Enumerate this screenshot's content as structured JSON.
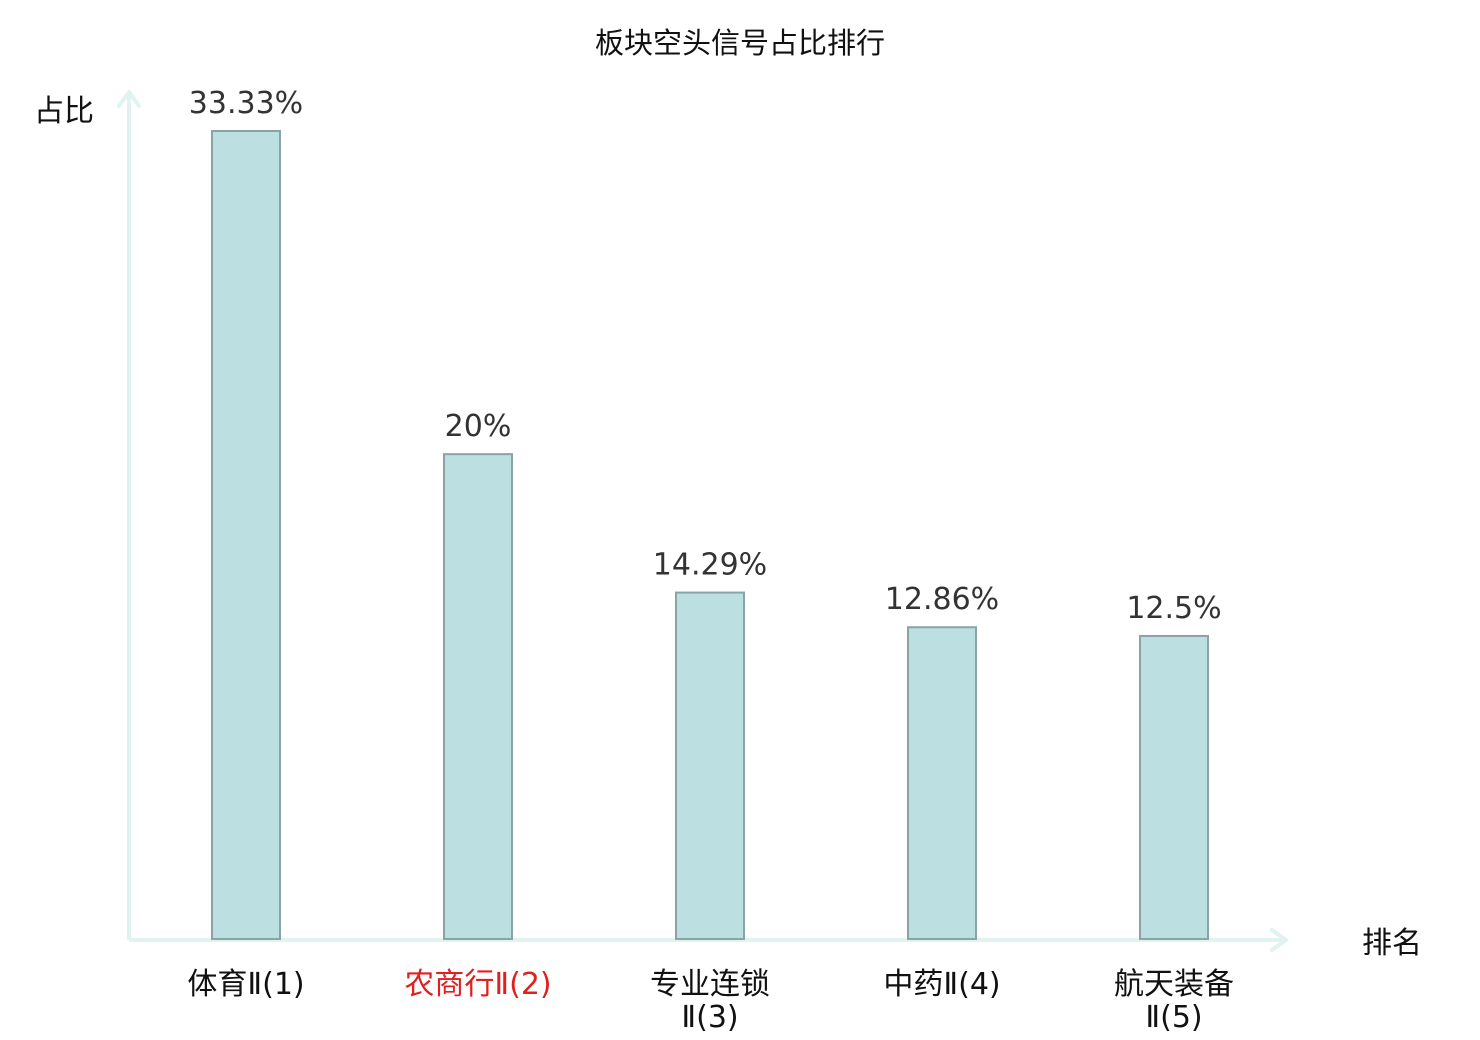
{
  "chart_data": {
    "type": "bar",
    "title": "板块空头信号占比排行",
    "ylabel": "占比",
    "xlabel": "排名",
    "categories": [
      {
        "lines": [
          "体育Ⅱ(1)"
        ],
        "highlight": false
      },
      {
        "lines": [
          "农商行Ⅱ(2)"
        ],
        "highlight": true
      },
      {
        "lines": [
          "专业连锁",
          "Ⅱ(3)"
        ],
        "highlight": false
      },
      {
        "lines": [
          "中药Ⅱ(4)"
        ],
        "highlight": false
      },
      {
        "lines": [
          "航天装备",
          "Ⅱ(5)"
        ],
        "highlight": false
      }
    ],
    "values": [
      33.33,
      20,
      14.29,
      12.86,
      12.5
    ],
    "value_labels": [
      "33.33%",
      "20%",
      "14.29%",
      "12.86%",
      "12.5%"
    ],
    "ylim": [
      0,
      35
    ],
    "grid": false,
    "legend": "none",
    "colors": {
      "bar_fill": "#bce0e2",
      "bar_stroke": "#8aa3a5",
      "axis": "#e0f3f1",
      "highlight_label": "#e02020"
    }
  }
}
